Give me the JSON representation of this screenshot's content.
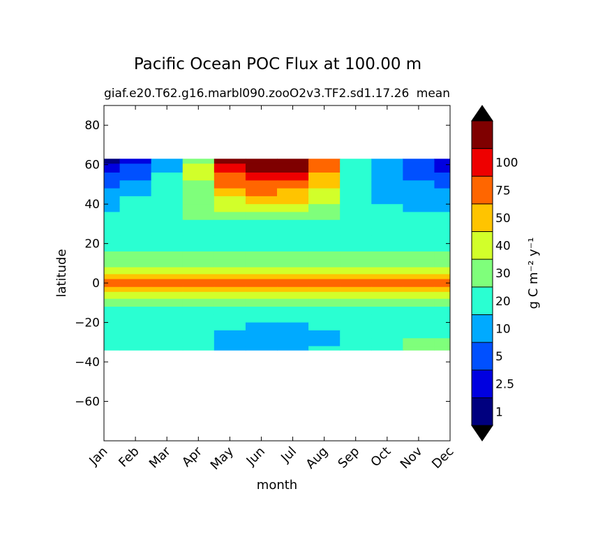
{
  "chart_data": {
    "type": "heatmap",
    "title": "Pacific Ocean POC Flux at 100.00 m",
    "subtitle_left": "giaf.e20.T62.g16.marbl090.zooO2v3.TF2.sd1.17.26",
    "subtitle_right": "mean",
    "xlabel": "month",
    "ylabel": "latitude",
    "x_tick_labels": [
      "Jan",
      "Feb",
      "Mar",
      "Apr",
      "May",
      "Jun",
      "Jul",
      "Aug",
      "Sep",
      "Oct",
      "Nov",
      "Dec"
    ],
    "y_tick_labels": [
      "80",
      "60",
      "40",
      "20",
      "0",
      "−20",
      "−40",
      "−60"
    ],
    "y_ticks": [
      80,
      60,
      40,
      20,
      0,
      -20,
      -40,
      -60
    ],
    "ylim": [
      -80,
      90
    ],
    "data_lat_range": [
      -34,
      63
    ],
    "colorbar": {
      "label": "g C m⁻² y⁻¹",
      "tick_labels": [
        "1",
        "2.5",
        "5",
        "10",
        "20",
        "30",
        "40",
        "50",
        "75",
        "100"
      ],
      "levels": [
        1,
        2.5,
        5,
        10,
        20,
        30,
        40,
        50,
        75,
        100
      ],
      "colors": [
        "#00007f",
        "#0000e0",
        "#0050ff",
        "#00aaff",
        "#2affd2",
        "#7fff7b",
        "#d2ff2a",
        "#ffc400",
        "#ff6600",
        "#ee0000",
        "#7f0000"
      ],
      "extend": "both",
      "under_color": "#000000",
      "over_color": "#000000"
    },
    "months": [
      1,
      2,
      3,
      4,
      5,
      6,
      7,
      8,
      9,
      10,
      11,
      12
    ],
    "latitudes": [
      63,
      58,
      54,
      50,
      46,
      42,
      38,
      34,
      30,
      26,
      22,
      18,
      14,
      10,
      6,
      3,
      1,
      -1,
      -3,
      -6,
      -10,
      -14,
      -18,
      -22,
      -26,
      -30,
      -34
    ],
    "values": [
      [
        0.5,
        1,
        6,
        28,
        120,
        150,
        120,
        60,
        16,
        6,
        3,
        1
      ],
      [
        2,
        3,
        8,
        32,
        90,
        110,
        100,
        55,
        18,
        7,
        3,
        2
      ],
      [
        3,
        4,
        10,
        30,
        70,
        85,
        80,
        48,
        17,
        7,
        4,
        3
      ],
      [
        4,
        6,
        12,
        28,
        55,
        65,
        60,
        40,
        15,
        7,
        5,
        4
      ],
      [
        6,
        8,
        14,
        26,
        45,
        50,
        48,
        35,
        15,
        8,
        6,
        6
      ],
      [
        8,
        10,
        16,
        24,
        38,
        42,
        40,
        30,
        14,
        9,
        8,
        8
      ],
      [
        9,
        11,
        17,
        22,
        30,
        32,
        30,
        25,
        14,
        10,
        9,
        9
      ],
      [
        11,
        13,
        18,
        20,
        22,
        22,
        22,
        20,
        14,
        11,
        10,
        10
      ],
      [
        14,
        15,
        16,
        16,
        16,
        16,
        16,
        15,
        13,
        12,
        12,
        12
      ],
      [
        15,
        15,
        15,
        15,
        15,
        15,
        15,
        15,
        15,
        15,
        15,
        15
      ],
      [
        14,
        14,
        14,
        14,
        14,
        14,
        14,
        14,
        14,
        14,
        14,
        14
      ],
      [
        15,
        15,
        15,
        15,
        15,
        15,
        15,
        15,
        15,
        15,
        15,
        15
      ],
      [
        22,
        22,
        21,
        21,
        21,
        21,
        21,
        21,
        21,
        21,
        21,
        21
      ],
      [
        25,
        25,
        24,
        24,
        24,
        24,
        24,
        24,
        24,
        24,
        24,
        24
      ],
      [
        33,
        33,
        32,
        32,
        32,
        32,
        32,
        32,
        32,
        32,
        32,
        32
      ],
      [
        45,
        45,
        44,
        44,
        44,
        44,
        44,
        44,
        44,
        44,
        44,
        45
      ],
      [
        60,
        60,
        58,
        58,
        58,
        58,
        58,
        58,
        58,
        58,
        58,
        62
      ],
      [
        58,
        58,
        56,
        56,
        56,
        56,
        56,
        56,
        56,
        56,
        56,
        60
      ],
      [
        42,
        42,
        41,
        41,
        41,
        41,
        41,
        41,
        41,
        41,
        41,
        42
      ],
      [
        33,
        32,
        31,
        31,
        31,
        31,
        31,
        31,
        31,
        31,
        31,
        32
      ],
      [
        22,
        22,
        21,
        21,
        21,
        20,
        20,
        20,
        21,
        21,
        21,
        21
      ],
      [
        16,
        16,
        16,
        16,
        16,
        16,
        16,
        16,
        16,
        16,
        16,
        16
      ],
      [
        14,
        14,
        14,
        14,
        13,
        13,
        13,
        13,
        13,
        14,
        14,
        14
      ],
      [
        13,
        13,
        13,
        12,
        10,
        9,
        9,
        10,
        12,
        13,
        13,
        13
      ],
      [
        13,
        13,
        12,
        10,
        8,
        8,
        8,
        8,
        11,
        14,
        16,
        16
      ],
      [
        14,
        13,
        12,
        10,
        8,
        8,
        8,
        9,
        12,
        18,
        21,
        21
      ],
      [
        15,
        14,
        13,
        11,
        9,
        9,
        9,
        10,
        13,
        19,
        22,
        22
      ]
    ]
  }
}
